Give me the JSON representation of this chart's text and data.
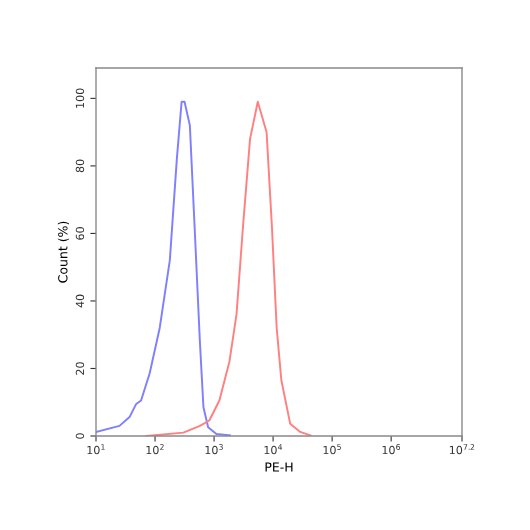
{
  "chart_data": {
    "type": "line",
    "xlabel": "PE-H",
    "ylabel": "Count (%)",
    "log": "x",
    "grid": false,
    "legend": false,
    "xlim": [
      10,
      15848932
    ],
    "ylim": [
      0,
      109
    ],
    "xticks": [
      {
        "value": 10,
        "label": "10$^{1}$"
      },
      {
        "value": 100,
        "label": "10$^{2}$"
      },
      {
        "value": 1000,
        "label": "10$^{3}$"
      },
      {
        "value": 10000,
        "label": "10$^{4}$"
      },
      {
        "value": 100000,
        "label": "10$^{5}$"
      },
      {
        "value": 1000000,
        "label": "10$^{6}$"
      },
      {
        "value": 15848932,
        "label": "10$^{7.2}$"
      }
    ],
    "yticks": [
      0,
      20,
      40,
      60,
      80,
      100
    ],
    "series": [
      {
        "color": "#7f7fff",
        "x": [
          10,
          25,
          37,
          48,
          58,
          81,
          120,
          178,
          234,
          282,
          316,
          389,
          468,
          575,
          661,
          794,
          1096,
          1862
        ],
        "values": [
          1.2,
          3,
          5.6,
          9.5,
          10.5,
          18.5,
          32,
          52,
          82,
          99,
          99,
          92,
          62,
          28,
          8.5,
          2.6,
          0.6,
          0.2
        ]
      },
      {
        "color": "#ff8080",
        "x": [
          71,
          302,
          575,
          832,
          1230,
          1820,
          2400,
          3090,
          4070,
          5500,
          7760,
          9550,
          11500,
          13800,
          19500,
          28800,
          42700
        ],
        "values": [
          0,
          1,
          3,
          4.6,
          10.5,
          22,
          36,
          62,
          88,
          99,
          90,
          62,
          32,
          16.5,
          3.6,
          1.2,
          0.2
        ]
      }
    ]
  }
}
